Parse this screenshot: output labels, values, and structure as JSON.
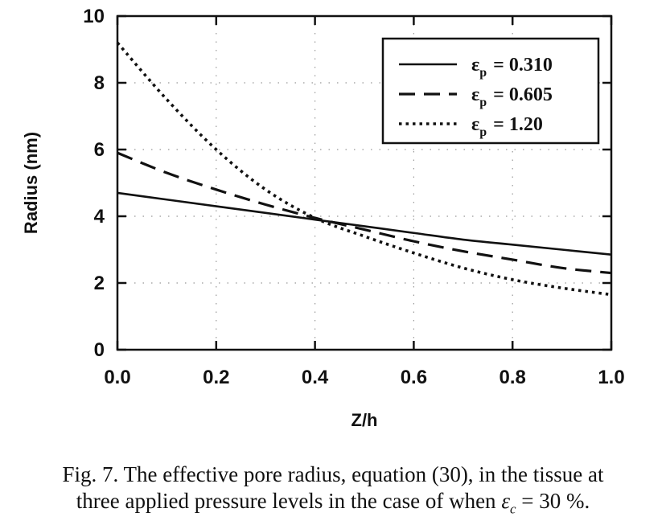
{
  "chart_data": {
    "type": "line",
    "xlabel": "Z/h",
    "ylabel": "Radius (nm)",
    "xlim": [
      0.0,
      1.0
    ],
    "ylim": [
      0,
      10
    ],
    "x_ticks": [
      "0.0",
      "0.2",
      "0.4",
      "0.6",
      "0.8",
      "1.0"
    ],
    "y_ticks": [
      "0",
      "2",
      "4",
      "6",
      "8",
      "10"
    ],
    "grid": true,
    "legend_position": "top-right",
    "series": [
      {
        "name": "ε_p = 0.310",
        "legend_symbol": "ε",
        "legend_sub": "p",
        "legend_value": "= 0.310",
        "style": "solid",
        "x": [
          0.0,
          0.1,
          0.2,
          0.3,
          0.4,
          0.5,
          0.6,
          0.7,
          0.8,
          0.9,
          1.0
        ],
        "y": [
          4.7,
          4.5,
          4.3,
          4.1,
          3.9,
          3.7,
          3.5,
          3.3,
          3.15,
          3.0,
          2.85
        ]
      },
      {
        "name": "ε_p = 0.605",
        "legend_symbol": "ε",
        "legend_sub": "p",
        "legend_value": "= 0.605",
        "style": "dashed",
        "x": [
          0.0,
          0.1,
          0.2,
          0.3,
          0.4,
          0.5,
          0.6,
          0.7,
          0.8,
          0.9,
          1.0
        ],
        "y": [
          5.9,
          5.3,
          4.8,
          4.35,
          3.95,
          3.6,
          3.25,
          2.95,
          2.7,
          2.45,
          2.3
        ]
      },
      {
        "name": "ε_p = 1.20",
        "legend_symbol": "ε",
        "legend_sub": "p",
        "legend_value": "= 1.20",
        "style": "dotted",
        "x": [
          0.0,
          0.1,
          0.2,
          0.3,
          0.4,
          0.5,
          0.6,
          0.7,
          0.8,
          0.9,
          1.0
        ],
        "y": [
          9.2,
          7.5,
          6.0,
          4.8,
          3.95,
          3.4,
          2.9,
          2.45,
          2.1,
          1.85,
          1.65
        ]
      }
    ]
  },
  "caption": {
    "line1": "Fig. 7.  The effective pore radius, equation (30), in the tissue at",
    "line2_prefix": "three applied pressure levels in the case of when ",
    "line2_symbol": "ε",
    "line2_sub": "c",
    "line2_suffix": " = 30 %."
  }
}
